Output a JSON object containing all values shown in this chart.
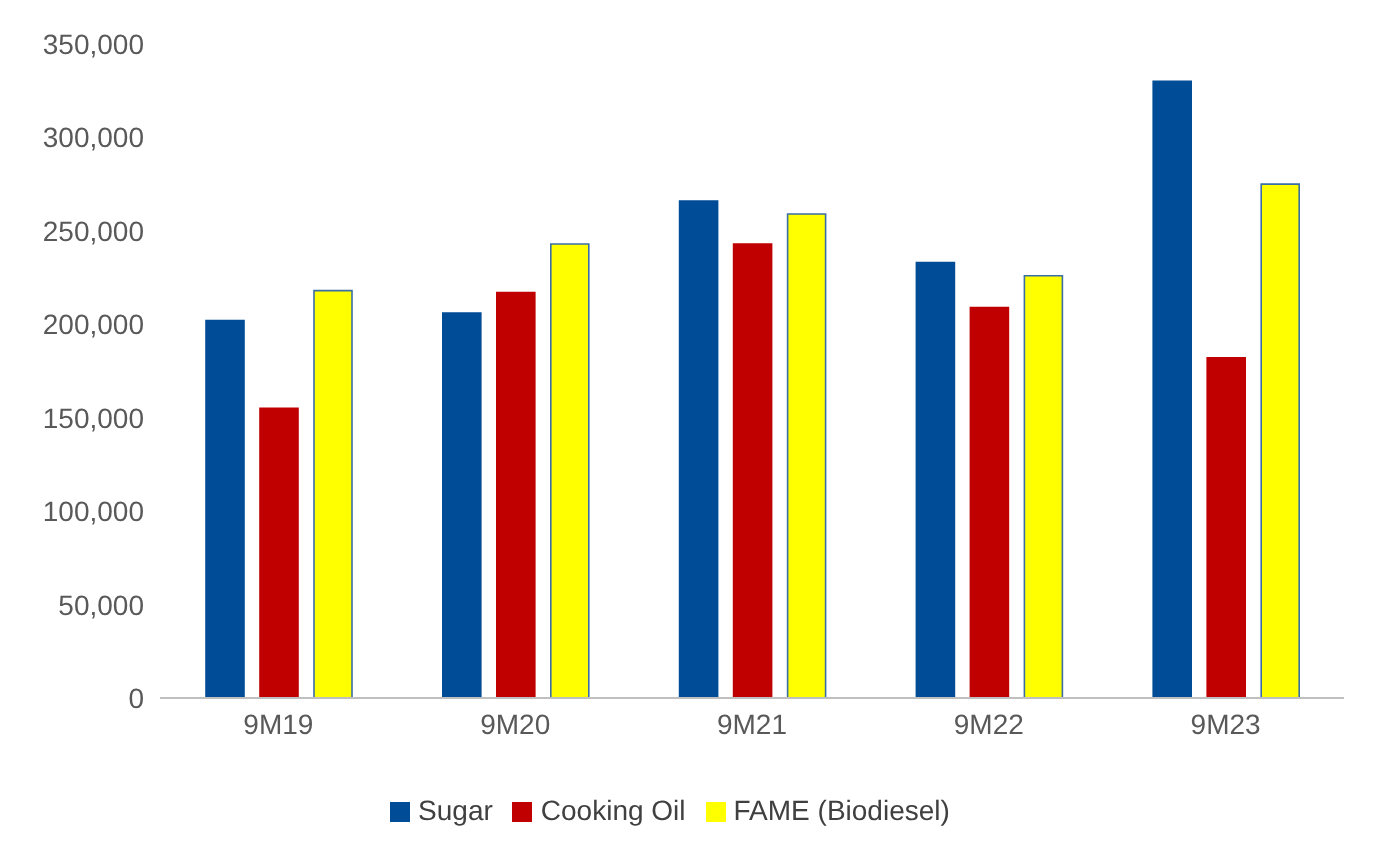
{
  "chart_data": {
    "type": "bar",
    "categories": [
      "9M19",
      "9M20",
      "9M21",
      "9M22",
      "9M23"
    ],
    "series": [
      {
        "name": "Sugar",
        "color": "#004c97",
        "values": [
          202000,
          206000,
          266000,
          233000,
          330000
        ]
      },
      {
        "name": "Cooking Oil",
        "color": "#c00000",
        "values": [
          155000,
          217000,
          243000,
          209000,
          182000
        ]
      },
      {
        "name": "FAME (Biodiesel)",
        "color": "#ffff00",
        "values": [
          218000,
          243000,
          259000,
          226000,
          275000
        ]
      }
    ],
    "ylim": [
      0,
      350000
    ],
    "yticks": [
      0,
      {
        "value": 50000,
        "label": "50,000"
      },
      {
        "value": 100000,
        "label": "100,000"
      },
      {
        "value": 150000,
        "label": "150,000"
      },
      {
        "value": 200000,
        "label": "200,000"
      },
      {
        "value": 250000,
        "label": "250,000"
      },
      {
        "value": 300000,
        "label": "300,000"
      },
      {
        "value": 350000,
        "label": "350,000"
      }
    ],
    "grid": false,
    "legend": "bottom"
  }
}
